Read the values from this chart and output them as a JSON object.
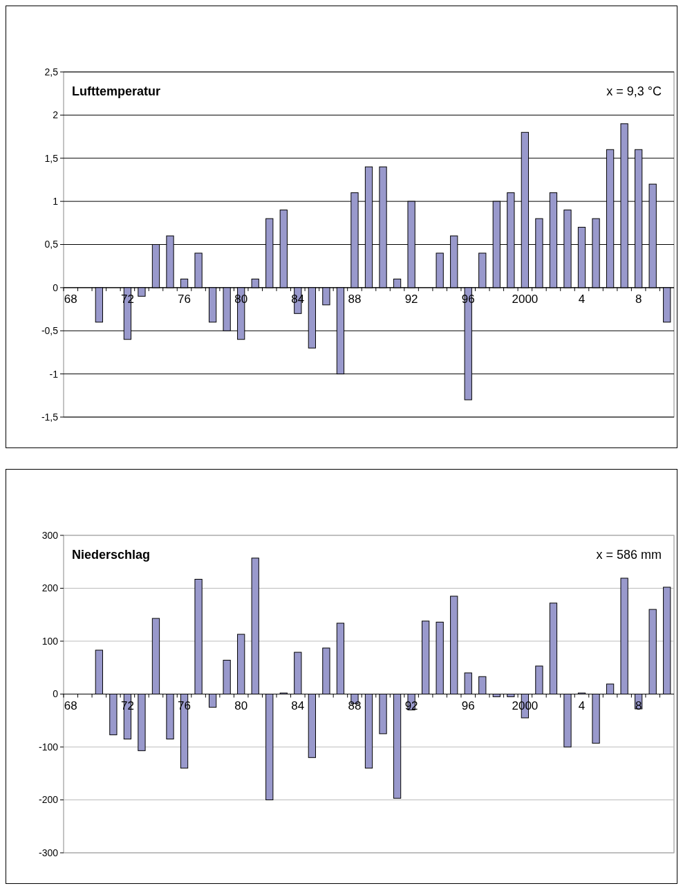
{
  "chart_data": [
    {
      "type": "bar",
      "title": "Lufttemperatur",
      "annotations": [
        "x = 9,3 °C"
      ],
      "grid": "y",
      "color": "#9999cc",
      "categories": [
        "68",
        null,
        null,
        null,
        "72",
        null,
        null,
        null,
        "76",
        null,
        null,
        null,
        "80",
        null,
        null,
        null,
        "84",
        null,
        null,
        null,
        "88",
        null,
        null,
        null,
        "92",
        null,
        null,
        null,
        "96",
        null,
        null,
        null,
        "2000",
        null,
        null,
        null,
        "4",
        null,
        null,
        null,
        "8",
        null,
        null
      ],
      "values": [
        null,
        null,
        -0.4,
        null,
        -0.6,
        -0.1,
        0.5,
        0.6,
        0.1,
        0.4,
        -0.4,
        -0.5,
        -0.6,
        0.1,
        0.8,
        0.9,
        -0.3,
        -0.7,
        -0.2,
        -1.0,
        1.1,
        1.4,
        1.4,
        0.1,
        1.0,
        null,
        0.4,
        0.6,
        -1.3,
        0.4,
        1.0,
        1.1,
        1.8,
        0.8,
        1.1,
        0.9,
        0.7,
        0.8,
        1.6,
        1.9,
        1.6,
        1.2,
        -0.4
      ],
      "ylim": [
        -1.5,
        2.5
      ],
      "yticks": [
        {
          "value": -1.5,
          "label": "-1,5"
        },
        -1,
        {
          "value": -0.5,
          "label": "-0,5"
        },
        0,
        {
          "value": 0.5,
          "label": "0,5"
        },
        1,
        {
          "value": 1.5,
          "label": "1,5"
        },
        2,
        {
          "value": 2.5,
          "label": "2,5"
        }
      ]
    },
    {
      "type": "bar",
      "title": "Niederschlag",
      "annotations": [
        "x = 586 mm"
      ],
      "grid": "y",
      "color": "#9999cc",
      "categories": [
        "68",
        null,
        null,
        null,
        "72",
        null,
        null,
        null,
        "76",
        null,
        null,
        null,
        "80",
        null,
        null,
        null,
        "84",
        null,
        null,
        null,
        "88",
        null,
        null,
        null,
        "92",
        null,
        null,
        null,
        "96",
        null,
        null,
        null,
        "2000",
        null,
        null,
        null,
        "4",
        null,
        null,
        null,
        "8",
        null,
        null
      ],
      "values": [
        null,
        null,
        83,
        -77,
        -85,
        -107,
        143,
        -85,
        -140,
        217,
        -25,
        64,
        113,
        257,
        -200,
        2,
        79,
        -120,
        87,
        134,
        -18,
        -140,
        -75,
        -197,
        -30,
        138,
        136,
        185,
        40,
        33,
        -5,
        -5,
        -45,
        53,
        172,
        -100,
        2,
        -93,
        19,
        219,
        -28,
        160,
        202
      ],
      "ylim": [
        -300,
        300
      ],
      "yticks": [
        -300,
        -200,
        -100,
        0,
        100,
        200,
        300
      ]
    }
  ]
}
